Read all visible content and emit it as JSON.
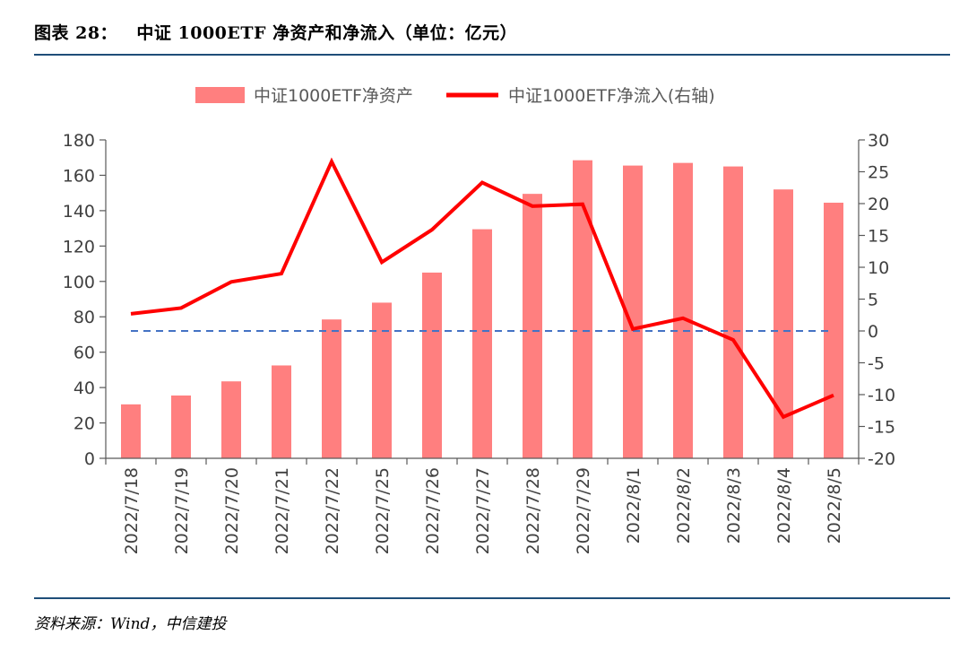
{
  "header": {
    "figure_title": "图表 28：   中证 1000ETF 净资产和净流入（单位：亿元）"
  },
  "footer": {
    "source": "资料来源：Wind，中信建投"
  },
  "colors": {
    "bar": "#ff7f7f",
    "line": "#ff0000",
    "zero_line": "#4472c4",
    "rule": "#1f4e79"
  },
  "chart_data": {
    "type": "bar",
    "categories": [
      "2022/7/18",
      "2022/7/19",
      "2022/7/20",
      "2022/7/21",
      "2022/7/22",
      "2022/7/25",
      "2022/7/26",
      "2022/7/27",
      "2022/7/28",
      "2022/7/29",
      "2022/8/1",
      "2022/8/2",
      "2022/8/3",
      "2022/8/4",
      "2022/8/5"
    ],
    "series": [
      {
        "name": "中证1000ETF净资产",
        "type": "bar",
        "axis": "left",
        "values": [
          30.5,
          35.5,
          43.5,
          52.5,
          78.5,
          88,
          105,
          129.5,
          149.5,
          168.5,
          165.5,
          167,
          165,
          152,
          144.5
        ]
      },
      {
        "name": "中证1000ETF净流入(右轴)",
        "type": "line",
        "axis": "right",
        "values": [
          2.7,
          3.6,
          7.7,
          9.0,
          26.6,
          10.8,
          15.9,
          23.3,
          19.6,
          19.9,
          0.3,
          2.0,
          -1.4,
          -13.5,
          -10.1
        ]
      }
    ],
    "y_left": {
      "lim": [
        0,
        180
      ],
      "ticks": [
        0,
        20,
        40,
        60,
        80,
        100,
        120,
        140,
        160,
        180
      ]
    },
    "y_right": {
      "lim": [
        -20,
        30
      ],
      "ticks": [
        -20,
        -15,
        -10,
        -5,
        0,
        5,
        10,
        15,
        20,
        25,
        30
      ]
    },
    "reference_line": {
      "axis": "right",
      "value": 0,
      "style": "dashed"
    },
    "legend": {
      "position": "top"
    },
    "grid": false
  }
}
